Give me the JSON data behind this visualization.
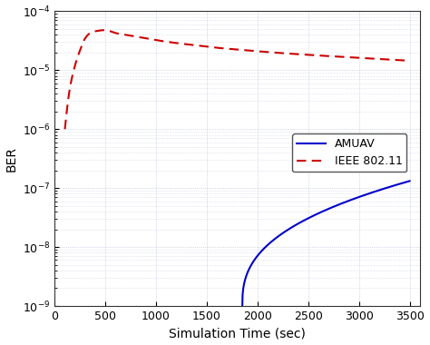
{
  "title": "",
  "xlabel": "Simulation Time (sec)",
  "ylabel": "BER",
  "xlim": [
    0,
    3600
  ],
  "ylim_log": [
    -9,
    -4
  ],
  "plot_bg_color": "#ffffff",
  "fig_bg_color": "#ffffff",
  "grid_color": "#b0b8d0",
  "amuav_color": "#0000cc",
  "ieee_color": "#cc0000",
  "legend_labels": [
    "AMUAV",
    "IEEE 802.11"
  ],
  "xticks": [
    0,
    500,
    1000,
    1500,
    2000,
    2500,
    3000,
    3500
  ],
  "ieee_x": [
    100,
    150,
    200,
    250,
    300,
    350,
    400,
    500,
    600,
    700,
    800,
    1000,
    1200,
    1400,
    1600,
    1800,
    2000,
    2500,
    3000,
    3500
  ],
  "ieee_y_log": [
    -6.0,
    -5.3,
    -4.92,
    -4.66,
    -4.46,
    -4.37,
    -4.34,
    -4.32,
    -4.37,
    -4.4,
    -4.43,
    -4.49,
    -4.54,
    -4.58,
    -4.62,
    -4.65,
    -4.68,
    -4.74,
    -4.79,
    -4.84
  ]
}
